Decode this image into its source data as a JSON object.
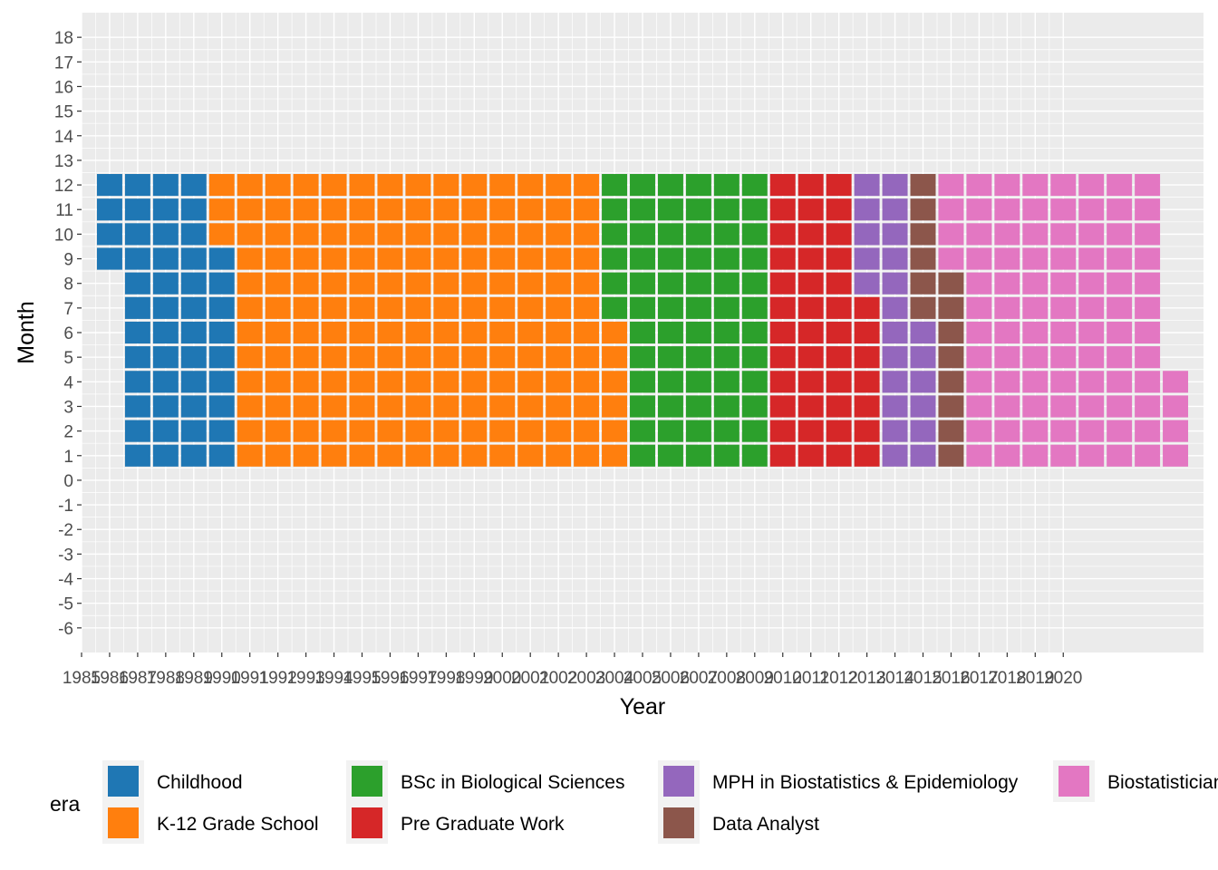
{
  "chart_data": {
    "type": "heatmap",
    "title": "",
    "xlabel": "Year",
    "ylabel": "Month",
    "x_tick_labels": [
      "1985",
      "1986",
      "1987",
      "1988",
      "1989",
      "1990",
      "1991",
      "1992",
      "1993",
      "1994",
      "1995",
      "1996",
      "1997",
      "1998",
      "1999",
      "2000",
      "2001",
      "2002",
      "2003",
      "2004",
      "2005",
      "2006",
      "2007",
      "2008",
      "2009",
      "2010",
      "2011",
      "2012",
      "2013",
      "2014",
      "2015",
      "2016",
      "2017",
      "2018",
      "2019",
      "2020"
    ],
    "y_ticks": [
      -6,
      -5,
      -4,
      -3,
      -2,
      -1,
      0,
      1,
      2,
      3,
      4,
      5,
      6,
      7,
      8,
      9,
      10,
      11,
      12,
      13,
      14,
      15,
      16,
      17,
      18
    ],
    "xlim": [
      1985,
      2025
    ],
    "ylim": [
      -7,
      19
    ],
    "grid": true,
    "legend": {
      "title": "era",
      "position": "bottom",
      "entries": [
        {
          "name": "Childhood",
          "color": "#1F77B4"
        },
        {
          "name": "K-12 Grade School",
          "color": "#FF7F0E"
        },
        {
          "name": "BSc in Biological Sciences",
          "color": "#2CA02C"
        },
        {
          "name": "Pre Graduate Work",
          "color": "#D62728"
        },
        {
          "name": "MPH in Biostatistics & Epidemiology",
          "color": "#9467BD"
        },
        {
          "name": "Data Analyst",
          "color": "#8C564B"
        },
        {
          "name": "Biostatistician",
          "color": "#E377C2"
        }
      ]
    },
    "series": [
      {
        "name": "Childhood",
        "color": "#1F77B4",
        "start": {
          "year": 1986,
          "month": 9
        },
        "end": {
          "year": 1990,
          "month": 9
        }
      },
      {
        "name": "K-12 Grade School",
        "color": "#FF7F0E",
        "start": {
          "year": 1990,
          "month": 10
        },
        "end": {
          "year": 2004,
          "month": 6
        }
      },
      {
        "name": "BSc in Biological Sciences",
        "color": "#2CA02C",
        "start": {
          "year": 2004,
          "month": 7
        },
        "end": {
          "year": 2009,
          "month": 12
        }
      },
      {
        "name": "Pre Graduate Work",
        "color": "#D62728",
        "start": {
          "year": 2010,
          "month": 1
        },
        "end": {
          "year": 2013,
          "month": 7
        }
      },
      {
        "name": "MPH in Biostatistics & Epidemiology",
        "color": "#9467BD",
        "start": {
          "year": 2013,
          "month": 8
        },
        "end": {
          "year": 2015,
          "month": 6
        }
      },
      {
        "name": "Data Analyst",
        "color": "#8C564B",
        "start": {
          "year": 2015,
          "month": 7
        },
        "end": {
          "year": 2016,
          "month": 8
        }
      },
      {
        "name": "Biostatistician",
        "color": "#E377C2",
        "start": {
          "year": 2016,
          "month": 9
        },
        "end": {
          "year": 2024,
          "month": 4
        }
      }
    ]
  }
}
